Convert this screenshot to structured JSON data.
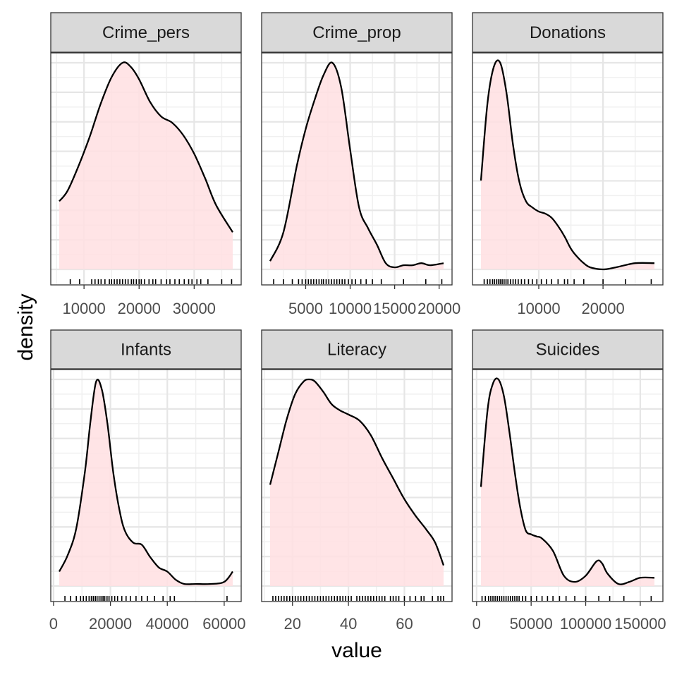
{
  "chart_data": {
    "type": "density",
    "facet_layout": "3 columns x 2 rows",
    "xlabel": "value",
    "ylabel": "density",
    "fill_color": "#ffdfe2",
    "line_color": "#000000",
    "grid": true,
    "facets": [
      {
        "name": "Crime_pers",
        "xlim": [
          5500,
          37000
        ],
        "x_ticks": [
          10000,
          20000,
          30000
        ],
        "x_tick_labels": [
          "10000",
          "20000",
          "30000"
        ],
        "curve_x": [
          5500,
          7000,
          9000,
          11000,
          13000,
          15000,
          17000,
          18500,
          20000,
          22000,
          24000,
          26000,
          28000,
          30000,
          32000,
          34000,
          37000
        ],
        "curve_density": [
          0.33,
          0.38,
          0.5,
          0.64,
          0.8,
          0.93,
          1.0,
          0.98,
          0.92,
          0.81,
          0.74,
          0.71,
          0.65,
          0.56,
          0.44,
          0.31,
          0.18
        ],
        "rug": [
          7500,
          9200,
          11400,
          12000,
          12600,
          13100,
          13800,
          14600,
          15000,
          15500,
          16000,
          16500,
          17000,
          17500,
          18000,
          18600,
          19000,
          19500,
          20000,
          20400,
          21000,
          21800,
          22500,
          23000,
          24000,
          25000,
          25600,
          26500,
          27300,
          28200,
          29000,
          29600,
          30500,
          31200,
          32500,
          35000,
          36800
        ]
      },
      {
        "name": "Crime_prop",
        "xlim": [
          1000,
          20500
        ],
        "x_ticks": [
          5000,
          10000,
          15000,
          20000
        ],
        "x_tick_labels": [
          "5000",
          "10000",
          "15000",
          "20000"
        ],
        "curve_x": [
          1000,
          2500,
          4000,
          5000,
          6000,
          7000,
          8000,
          9000,
          10000,
          11000,
          12000,
          13000,
          14000,
          15000,
          16000,
          17000,
          18000,
          19000,
          20500
        ],
        "curve_density": [
          0.04,
          0.18,
          0.5,
          0.68,
          0.82,
          0.94,
          1.0,
          0.88,
          0.58,
          0.3,
          0.2,
          0.12,
          0.03,
          0.01,
          0.02,
          0.02,
          0.03,
          0.02,
          0.03
        ],
        "rug": [
          1400,
          2500,
          3500,
          4200,
          4600,
          5000,
          5300,
          5600,
          5900,
          6200,
          6500,
          6800,
          7000,
          7300,
          7600,
          7900,
          8200,
          8500,
          8800,
          9100,
          9400,
          9800,
          10200,
          10600,
          11200,
          11800,
          12500,
          13500,
          16000,
          18500,
          20300
        ]
      },
      {
        "name": "Donations",
        "xlim": [
          1000,
          28000
        ],
        "x_ticks": [
          10000,
          20000
        ],
        "x_tick_labels": [
          "10000",
          "20000"
        ],
        "curve_x": [
          1000,
          2000,
          3000,
          4000,
          5000,
          6000,
          7000,
          8000,
          9000,
          10000,
          11000,
          12000,
          13000,
          14000,
          15000,
          16000,
          17000,
          18000,
          20000,
          22000,
          25000,
          28000
        ],
        "curve_density": [
          0.43,
          0.8,
          0.98,
          1.0,
          0.85,
          0.6,
          0.42,
          0.33,
          0.3,
          0.28,
          0.27,
          0.25,
          0.21,
          0.16,
          0.1,
          0.06,
          0.03,
          0.01,
          0.0,
          0.01,
          0.03,
          0.03
        ],
        "rug": [
          1500,
          2000,
          2400,
          2800,
          3100,
          3400,
          3700,
          4000,
          4300,
          4600,
          4900,
          5200,
          5600,
          6000,
          6400,
          6800,
          7300,
          7800,
          8400,
          9000,
          9700,
          10400,
          11200,
          12000,
          13000,
          14000,
          14500,
          15500,
          17000,
          20000,
          23500,
          27500
        ]
      },
      {
        "name": "Infants",
        "xlim": [
          2000,
          63000
        ],
        "x_ticks": [
          0,
          20000,
          40000,
          60000
        ],
        "x_tick_labels": [
          "0",
          "20000",
          "40000",
          "60000"
        ],
        "curve_x": [
          2000,
          5000,
          8000,
          11000,
          13000,
          15000,
          17000,
          19000,
          21000,
          23000,
          25000,
          28000,
          31000,
          34000,
          37000,
          40000,
          43000,
          46000,
          50000,
          55000,
          60000,
          63000
        ],
        "curve_density": [
          0.07,
          0.15,
          0.28,
          0.55,
          0.8,
          0.99,
          0.95,
          0.78,
          0.55,
          0.38,
          0.27,
          0.21,
          0.2,
          0.14,
          0.09,
          0.07,
          0.03,
          0.01,
          0.01,
          0.01,
          0.02,
          0.07
        ],
        "rug": [
          4000,
          6000,
          8000,
          9500,
          10500,
          11500,
          12500,
          13300,
          14000,
          14700,
          15300,
          16000,
          16700,
          17400,
          18000,
          18800,
          19500,
          20500,
          21500,
          22500,
          24000,
          25500,
          27000,
          29000,
          31000,
          33000,
          35500,
          38500,
          41000,
          42500,
          61000
        ]
      },
      {
        "name": "Literacy",
        "xlim": [
          12,
          74
        ],
        "x_ticks": [
          20,
          40,
          60
        ],
        "x_tick_labels": [
          "20",
          "40",
          "60"
        ],
        "curve_x": [
          12,
          15,
          18,
          21,
          24,
          26,
          28,
          31,
          34,
          37,
          40,
          44,
          48,
          52,
          56,
          60,
          64,
          68,
          71,
          74
        ],
        "curve_density": [
          0.49,
          0.65,
          0.81,
          0.93,
          0.99,
          1.0,
          0.99,
          0.94,
          0.88,
          0.85,
          0.83,
          0.8,
          0.73,
          0.62,
          0.52,
          0.42,
          0.34,
          0.27,
          0.21,
          0.1
        ],
        "rug": [
          13,
          14,
          15,
          16,
          17,
          18,
          19,
          20,
          21,
          22,
          23,
          24,
          25,
          26,
          27,
          28,
          29,
          30,
          31,
          32,
          33,
          34,
          35,
          36,
          37,
          38,
          39,
          40,
          41,
          43,
          44,
          45,
          46,
          47,
          48,
          49,
          50,
          51,
          52,
          53,
          55,
          56,
          57,
          58,
          60,
          62,
          64,
          66,
          67,
          70,
          72,
          73,
          74
        ]
      },
      {
        "name": "Suicides",
        "xlim": [
          4000,
          163000
        ],
        "x_ticks": [
          0,
          50000,
          100000,
          150000
        ],
        "x_tick_labels": [
          "0",
          "50000",
          "100000",
          "150000"
        ],
        "curve_x": [
          4000,
          10000,
          15000,
          20000,
          25000,
          30000,
          35000,
          40000,
          45000,
          50000,
          55000,
          60000,
          70000,
          80000,
          90000,
          100000,
          110000,
          115000,
          120000,
          130000,
          140000,
          150000,
          163000
        ],
        "curve_density": [
          0.48,
          0.85,
          0.98,
          1.0,
          0.92,
          0.75,
          0.55,
          0.38,
          0.27,
          0.25,
          0.24,
          0.23,
          0.17,
          0.05,
          0.02,
          0.05,
          0.12,
          0.11,
          0.06,
          0.01,
          0.02,
          0.04,
          0.04
        ],
        "rug": [
          5000,
          8000,
          11000,
          13000,
          15000,
          17000,
          19000,
          21000,
          23000,
          25000,
          27000,
          29000,
          31000,
          33000,
          35000,
          37000,
          39000,
          42000,
          45000,
          50000,
          55000,
          60000,
          65000,
          70000,
          76000,
          82000,
          90000,
          100000,
          112000,
          122000,
          135000,
          160000
        ]
      }
    ]
  }
}
